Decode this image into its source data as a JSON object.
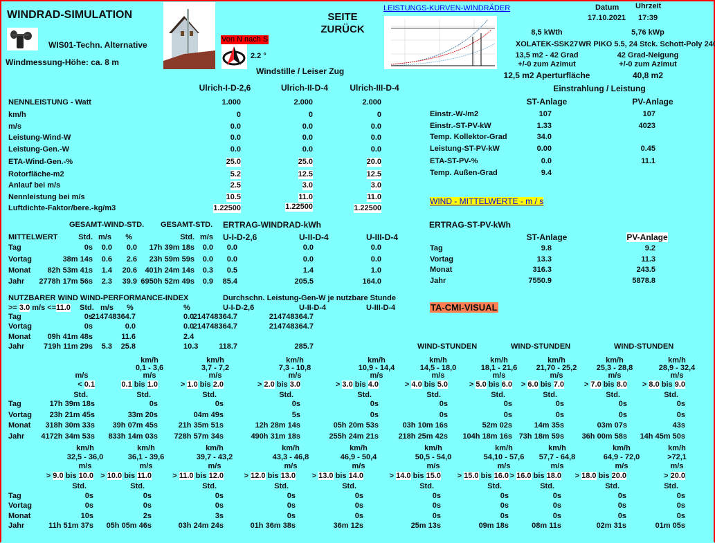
{
  "header": {
    "title": "WINDRAD-SIMULATION",
    "station": "WIS01-Techn. Alternative",
    "height": "Windmessung-Höhe: ca. 8 m",
    "direction_label": "Von N nach S",
    "direction_deg": "2.2 °",
    "wind_desc": "Windstille / Leiser Zug",
    "back_line1": "SEITE",
    "back_line2": "ZURÜCK",
    "curves_link": "LEISTUNGS-KURVEN-WINDRÄDER",
    "date_label": "Datum",
    "time_label": "Uhrzeit",
    "date": "17.10.2021",
    "time": "17:39"
  },
  "solar_info": {
    "st": [
      "8,5 kWth",
      "XOLATEK-SSK27",
      "13,5 m2 - 42 Grad",
      "+/-0 zum Azimut",
      "12,5 m2 Aperturfläche"
    ],
    "pv": [
      "5,76 kWp",
      "WR PIKO 5.5, 24 Stck. Schott-Poly 240",
      "42 Grad-Neigung",
      "+/-0 zum Azimut",
      "40,8 m2"
    ]
  },
  "turbines": {
    "headers": [
      "Ulrich-I-D-2,6",
      "Ulrich-II-D-4",
      "Ulrich-III-D-4"
    ],
    "rows": [
      {
        "label": "NENNLEISTUNG - Watt",
        "values": [
          "1.000",
          "2.000",
          "2.000"
        ],
        "hl": false
      },
      {
        "label": "km/h",
        "values": [
          "0",
          "0",
          "0"
        ],
        "hl": false
      },
      {
        "label": "m/s",
        "values": [
          "0.0",
          "0.0",
          "0.0"
        ],
        "hl": false
      },
      {
        "label": "Leistung-Wind-W",
        "values": [
          "0.0",
          "0.0",
          "0.0"
        ],
        "hl": false
      },
      {
        "label": "Leistung-Gen.-W",
        "values": [
          "0.0",
          "0.0",
          "0.0"
        ],
        "hl": false
      },
      {
        "label": "ETA-Wind-Gen.-%",
        "values": [
          "25.0",
          "25.0",
          "20.0"
        ],
        "hl": true
      },
      {
        "label": "Rotorfläche-m2",
        "values": [
          "5.2",
          "12.5",
          "12.5"
        ],
        "hl": true
      },
      {
        "label": "Anlauf bei m/s",
        "values": [
          "2.5",
          "3.0",
          "3.0"
        ],
        "hl": true
      },
      {
        "label": "Nennleistung bei m/s",
        "values": [
          "10.5",
          "11.0",
          "11.0"
        ],
        "hl": true
      },
      {
        "label": "Luftdichte-Faktor/bere.-kg/m3",
        "values": [
          "1.22500",
          "1.22500",
          "1.22500"
        ],
        "hl": true
      }
    ]
  },
  "irradiation": {
    "title": "Einstrahlung / Leistung",
    "headers": [
      "ST-Anlage",
      "PV-Anlage"
    ],
    "rows": [
      {
        "label": "Einstr.-W-/m2",
        "values": [
          "107",
          "107"
        ]
      },
      {
        "label": "Einstr.-ST-PV-kW",
        "values": [
          "1.33",
          "4023"
        ]
      },
      {
        "label": "Temp. Kollektor-Grad",
        "values": [
          "34.0",
          ""
        ]
      },
      {
        "label": "Leistung-ST-PV-kW",
        "values": [
          "0.00",
          "0.45"
        ]
      },
      {
        "label": "ETA-ST-PV-%",
        "values": [
          "0.0",
          "11.1"
        ]
      },
      {
        "label": "Temp. Außen-Grad",
        "values": [
          "9.4",
          ""
        ]
      }
    ],
    "wind_avg_link": "WIND - MITTELWERTE - m / s",
    "link_bg": "#FFFF00"
  },
  "averages": {
    "group_headers": [
      "GESAMT-WIND-STD.",
      "GESAMT-STD.",
      "ERTRAG-WINDRAD-kWh"
    ],
    "headers": [
      "MITTELWERT",
      "Std.",
      "m/s",
      "%",
      "Std.",
      "m/s",
      "U-I-D-2,6",
      "U-II-D-4",
      "U-III-D-4"
    ],
    "rows": [
      {
        "label": "Tag",
        "values": [
          "0s",
          "0.0",
          "0.0",
          "17h 39m 18s",
          "0.0",
          "0.0",
          "0.0",
          "0.0"
        ]
      },
      {
        "label": "Vortag",
        "values": [
          "38m 14s",
          "0.6",
          "2.6",
          "23h 59m 59s",
          "0.0",
          "0.0",
          "0.0",
          "0.0"
        ]
      },
      {
        "label": "Monat",
        "values": [
          "82h 53m 41s",
          "1.4",
          "20.6",
          "401h 24m 14s",
          "0.3",
          "0.5",
          "1.4",
          "1.0"
        ]
      },
      {
        "label": "Jahr",
        "values": [
          "2778h 17m 56s",
          "2.3",
          "39.9",
          "6950h 52m 49s",
          "0.9",
          "85.4",
          "205.5",
          "164.0"
        ]
      }
    ]
  },
  "st_pv_yield": {
    "title": "ERTRAG-ST-PV-kWh",
    "headers": [
      "ST-Anlage",
      "PV-Anlage"
    ],
    "rows": [
      {
        "label": "Tag",
        "values": [
          "9.8",
          "9.2"
        ]
      },
      {
        "label": "Vortag",
        "values": [
          "13.3",
          "11.3"
        ]
      },
      {
        "label": "Monat",
        "values": [
          "316.3",
          "243.5"
        ]
      },
      {
        "label": "Jahr",
        "values": [
          "7550.9",
          "5878.8"
        ]
      }
    ],
    "ta_cmi_link": "TA-CMI-VISUAL",
    "ta_cmi_bg": "#FF7F50"
  },
  "usable_wind": {
    "title": "NUTZBARER WIND  WIND-PERFORMANCE-INDEX",
    "avg_title": "Durchschn. Leistung-Gen-W je nutzbare Stunde",
    "range_prefix": ">=",
    "range_min": "3.0",
    "range_mid": "m/s <=",
    "range_max": "11.0",
    "headers": [
      "Std.",
      "m/s",
      "%",
      "%",
      "U-I-D-2,6",
      "U-II-D-4",
      "U-III-D-4"
    ],
    "rows": [
      {
        "label": "Tag",
        "values": [
          "0s",
          "",
          "214748364.7",
          "0.0",
          "214748364.7",
          "214748364.7"
        ]
      },
      {
        "label": "Vortag",
        "values": [
          "0s",
          "",
          "0.0",
          "0.0",
          "214748364.7",
          "214748364.7"
        ]
      },
      {
        "label": "Monat",
        "values": [
          "09h 41m 48s",
          "",
          "11.6",
          "2.4",
          "",
          ""
        ]
      },
      {
        "label": "Jahr",
        "values": [
          "719h 11m 29s",
          "5.3",
          "25.8",
          "10.3",
          "118.7",
          "285.7"
        ]
      }
    ]
  },
  "wind_hours_titles": [
    "WIND-STUNDEN",
    "WIND-STUNDEN",
    "WIND-STUNDEN"
  ],
  "wind_hours": [
    {
      "bins": [
        {
          "kmh": "",
          "range": "",
          "ms": "m/s",
          "prefix": "<",
          "low": "0.1",
          "bis": "",
          "high": "",
          "std": "Std."
        },
        {
          "kmh": "km/h",
          "range": "0,1 - 3,6",
          "ms": "m/s",
          "prefix": "",
          "low": "0.1",
          "bis": "bis",
          "high": "1.0",
          "std": "Std."
        },
        {
          "kmh": "km/h",
          "range": "3,7 - 7,2",
          "ms": "m/s",
          "prefix": ">",
          "low": "1.0",
          "bis": "bis",
          "high": "2.0",
          "std": "Std."
        },
        {
          "kmh": "km/h",
          "range": "7,3 - 10,8",
          "ms": "m/s",
          "prefix": ">",
          "low": "2.0",
          "bis": "bis",
          "high": "3.0",
          "std": "Std."
        },
        {
          "kmh": "km/h",
          "range": "10,9 - 14,4",
          "ms": "m/s",
          "prefix": ">",
          "low": "3.0",
          "bis": "bis",
          "high": "4.0",
          "std": "Std."
        },
        {
          "kmh": "km/h",
          "range": "14,5 - 18,0",
          "ms": "m/s",
          "prefix": ">",
          "low": "4.0",
          "bis": "bis",
          "high": "5.0",
          "std": "Std."
        },
        {
          "kmh": "km/h",
          "range": "18,1 - 21,6",
          "ms": "m/s",
          "prefix": ">",
          "low": "5.0",
          "bis": "bis",
          "high": "6.0",
          "std": "Std."
        },
        {
          "kmh": "km/h",
          "range": "21,70 - 25,2",
          "ms": "m/s",
          "prefix": ">",
          "low": "6.0",
          "bis": "bis",
          "high": "7.0",
          "std": "Std."
        },
        {
          "kmh": "km/h",
          "range": "25,3 - 28,8",
          "ms": "m/s",
          "prefix": ">",
          "low": "7.0",
          "bis": "bis",
          "high": "8.0",
          "std": "Std."
        },
        {
          "kmh": "km/h",
          "range": "28,9 - 32,4",
          "ms": "m/s",
          "prefix": ">",
          "low": "8.0",
          "bis": "bis",
          "high": "9.0",
          "std": "Std."
        }
      ],
      "rows": [
        {
          "label": "Tag",
          "values": [
            "17h 39m 18s",
            "0s",
            "0s",
            "0s",
            "0s",
            "0s",
            "0s",
            "0s",
            "0s",
            "0s"
          ]
        },
        {
          "label": "Vortag",
          "values": [
            "23h 21m 45s",
            "33m 20s",
            "04m 49s",
            "5s",
            "0s",
            "0s",
            "0s",
            "0s",
            "0s",
            "0s"
          ]
        },
        {
          "label": "Monat",
          "values": [
            "318h 30m 33s",
            "39h 07m 45s",
            "21h 35m 51s",
            "12h 28m 14s",
            "05h 20m 53s",
            "03h 10m 16s",
            "52m 02s",
            "14m 35s",
            "03m 07s",
            "43s"
          ]
        },
        {
          "label": "Jahr",
          "values": [
            "4172h 34m 53s",
            "833h 14m 03s",
            "728h 57m 34s",
            "490h 31m 18s",
            "255h 24m 21s",
            "218h 25m 42s",
            "104h 18m 16s",
            "73h 18m 59s",
            "36h 00m 58s",
            "14h 45m 50s"
          ]
        }
      ]
    },
    {
      "bins": [
        {
          "kmh": "km/h",
          "range": "32,5 - 36,0",
          "ms": "m/s",
          "prefix": ">",
          "low": "9.0",
          "bis": "bis",
          "high": "10.0",
          "std": "Std."
        },
        {
          "kmh": "km/h",
          "range": "36,1 - 39,6",
          "ms": "m/s",
          "prefix": ">",
          "low": "10.0",
          "bis": "bis",
          "high": "11.0",
          "std": "Std."
        },
        {
          "kmh": "km/h",
          "range": "39,7 - 43,2",
          "ms": "m/s",
          "prefix": ">",
          "low": "11.0",
          "bis": "bis",
          "high": "12.0",
          "std": "Std."
        },
        {
          "kmh": "km/h",
          "range": "43,3 - 46,8",
          "ms": "m/s",
          "prefix": ">",
          "low": "12.0",
          "bis": "bis",
          "high": "13.0",
          "std": "Std."
        },
        {
          "kmh": "km/h",
          "range": "46,9 - 50,4",
          "ms": "m/s",
          "prefix": ">",
          "low": "13.0",
          "bis": "bis",
          "high": "14.0",
          "std": "Std."
        },
        {
          "kmh": "km/h",
          "range": "50,5 - 54,0",
          "ms": "m/s",
          "prefix": ">",
          "low": "14.0",
          "bis": "bis",
          "high": "15.0",
          "std": "Std."
        },
        {
          "kmh": "km/h",
          "range": "54,10 - 57,6",
          "ms": "m/s",
          "prefix": ">",
          "low": "15.0",
          "bis": "bis",
          "high": "16.0",
          "std": "Std."
        },
        {
          "kmh": "km/h",
          "range": "57,7 - 64,8",
          "ms": "m/s",
          "prefix": ">",
          "low": "16.0",
          "bis": "bis",
          "high": "18.0",
          "std": "Std."
        },
        {
          "kmh": "km/h",
          "range": "64,9 - 72,0",
          "ms": "m/s",
          "prefix": ">",
          "low": "18.0",
          "bis": "bis",
          "high": "20.0",
          "std": "Std."
        },
        {
          "kmh": "km/h",
          "range": ">72,1",
          "ms": "m/s",
          "prefix": ">",
          "low": "20.0",
          "bis": "",
          "high": "",
          "std": "Std."
        }
      ],
      "rows": [
        {
          "label": "Tag",
          "values": [
            "0s",
            "0s",
            "0s",
            "0s",
            "0s",
            "0s",
            "0s",
            "0s",
            "0s",
            "0s"
          ]
        },
        {
          "label": "Vortag",
          "values": [
            "0s",
            "0s",
            "0s",
            "0s",
            "0s",
            "0s",
            "0s",
            "0s",
            "0s",
            "0s"
          ]
        },
        {
          "label": "Monat",
          "values": [
            "10s",
            "2s",
            "3s",
            "0s",
            "0s",
            "0s",
            "0s",
            "0s",
            "0s",
            "0s"
          ]
        },
        {
          "label": "Jahr",
          "values": [
            "11h 51m 37s",
            "05h 05m 46s",
            "03h 24m 24s",
            "01h 36m 38s",
            "36m 12s",
            "25m 13s",
            "09m 18s",
            "08m 11s",
            "02m 31s",
            "01m 05s"
          ]
        }
      ]
    }
  ]
}
